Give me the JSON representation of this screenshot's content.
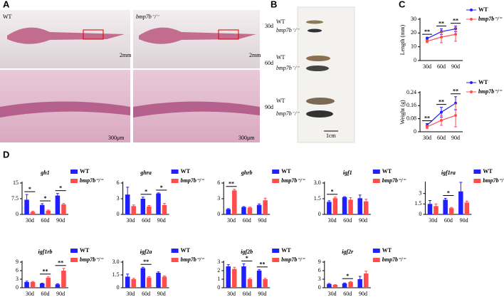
{
  "figure": {
    "panel_labels": [
      "A",
      "B",
      "C",
      "D"
    ]
  },
  "photos": {
    "A": {
      "genotypes": [
        "WT",
        "bmp7b⁻/⁻"
      ],
      "scale_bars": [
        "2mm",
        "2mm",
        "300μm",
        "300μm"
      ]
    },
    "B": {
      "ages": [
        "30d",
        "60d",
        "90d"
      ],
      "genotypes": [
        "WT",
        "bmp7b⁻/⁻"
      ],
      "scale_bar": "1cm"
    }
  },
  "chart_data": [
    {
      "type": "line",
      "ylabel": "Length (mm)",
      "categories": [
        "30d",
        "60d",
        "90d"
      ],
      "ylim": [
        0,
        30
      ],
      "yticks": [
        0,
        10,
        20,
        30
      ],
      "significance": [
        "**",
        "**",
        "**"
      ],
      "series": [
        {
          "name": "WT",
          "color": "#1f1fff",
          "values": [
            16,
            21,
            23
          ],
          "errors": [
            1,
            2,
            2
          ]
        },
        {
          "name": "bmp7b⁻/⁻",
          "color": "#ff4d4d",
          "values": [
            14,
            17,
            19
          ],
          "errors": [
            1,
            4,
            5
          ]
        }
      ]
    },
    {
      "type": "line",
      "ylabel": "Weight (g)",
      "categories": [
        "30d",
        "60d",
        "90d"
      ],
      "ylim": [
        0,
        0.24
      ],
      "yticks": [
        0,
        0.08,
        0.16,
        0.24
      ],
      "significance": [
        "**",
        "**",
        "**"
      ],
      "series": [
        {
          "name": "WT",
          "color": "#1f1fff",
          "values": [
            0.04,
            0.12,
            0.175
          ],
          "errors": [
            0.01,
            0.03,
            0.04
          ]
        },
        {
          "name": "bmp7b⁻/⁻",
          "color": "#ff4d4d",
          "values": [
            0.03,
            0.07,
            0.1
          ],
          "errors": [
            0.01,
            0.03,
            0.07
          ]
        }
      ]
    },
    {
      "type": "bar",
      "title": "gh1",
      "categories": [
        "30d",
        "60d",
        "90d"
      ],
      "ylim": [
        0,
        15
      ],
      "yticks": [
        0,
        7.5,
        15
      ],
      "significance": [
        "*",
        "*",
        "*"
      ],
      "series": [
        {
          "name": "WT",
          "color": "#1f1fff",
          "values": [
            7,
            4.5,
            9
          ],
          "errors": [
            2.5,
            0.6,
            1
          ]
        },
        {
          "name": "bmp7b⁻/⁻",
          "color": "#ff4d4d",
          "values": [
            1.2,
            1.8,
            4.8
          ],
          "errors": [
            0.3,
            0.3,
            0.4
          ]
        }
      ]
    },
    {
      "type": "bar",
      "title": "ghra",
      "categories": [
        "30d",
        "60d",
        "90d"
      ],
      "ylim": [
        0,
        6
      ],
      "yticks": [
        0,
        3,
        6
      ],
      "significance": [
        null,
        "*",
        "*"
      ],
      "series": [
        {
          "name": "WT",
          "color": "#1f1fff",
          "values": [
            3.8,
            3,
            4
          ],
          "errors": [
            1.4,
            0.3,
            0.1
          ]
        },
        {
          "name": "bmp7b⁻/⁻",
          "color": "#ff4d4d",
          "values": [
            1.6,
            1.5,
            1.8
          ],
          "errors": [
            0.2,
            0.2,
            0.3
          ]
        }
      ]
    },
    {
      "type": "bar",
      "title": "ghrb",
      "categories": [
        "30d",
        "60d",
        "90d"
      ],
      "ylim": [
        0,
        6
      ],
      "yticks": [
        0,
        3,
        6
      ],
      "significance": [
        "**",
        null,
        null
      ],
      "series": [
        {
          "name": "WT",
          "color": "#1f1fff",
          "values": [
            1,
            1.4,
            1.8
          ],
          "errors": [
            0.1,
            0.1,
            0.2
          ]
        },
        {
          "name": "bmp7b⁻/⁻",
          "color": "#ff4d4d",
          "values": [
            4.6,
            1.3,
            2.7
          ],
          "errors": [
            0.2,
            0.1,
            0.4
          ]
        }
      ]
    },
    {
      "type": "bar",
      "title": "igf1",
      "categories": [
        "30d",
        "60d",
        "90d"
      ],
      "ylim": [
        0,
        3
      ],
      "yticks": [
        0,
        1.5,
        {
          "value": 3,
          "label": "3.0"
        }
      ],
      "significance": [
        "*",
        null,
        null
      ],
      "series": [
        {
          "name": "WT",
          "color": "#1f1fff",
          "values": [
            1.2,
            1.65,
            1.55
          ],
          "errors": [
            0.1,
            0.05,
            0.3
          ]
        },
        {
          "name": "bmp7b⁻/⁻",
          "color": "#ff4d4d",
          "values": [
            1.55,
            1.4,
            1.25
          ],
          "errors": [
            0.1,
            0.2,
            0.2
          ]
        }
      ]
    },
    {
      "type": "bar",
      "title": "igf1ra",
      "categories": [
        "30d",
        "60d",
        "90d"
      ],
      "ylim": [
        0,
        4.5
      ],
      "yticks": [
        0,
        1.5,
        3
      ],
      "significance": [
        null,
        "*",
        null
      ],
      "series": [
        {
          "name": "WT",
          "color": "#1f1fff",
          "values": [
            1.5,
            2.1,
            3.3
          ],
          "errors": [
            0.5,
            0.2,
            1.3
          ]
        },
        {
          "name": "bmp7b⁻/⁻",
          "color": "#ff4d4d",
          "values": [
            1.2,
            0.9,
            1.7
          ],
          "errors": [
            0.3,
            0.1,
            0.2
          ]
        }
      ]
    },
    {
      "type": "bar",
      "title": "igf1rb",
      "categories": [
        "30d",
        "60d",
        "90d"
      ],
      "ylim": [
        0,
        9
      ],
      "yticks": [
        0,
        3,
        6,
        9
      ],
      "significance": [
        null,
        "**",
        "**"
      ],
      "series": [
        {
          "name": "WT",
          "color": "#1f1fff",
          "values": [
            2,
            1.5,
            1.2
          ],
          "errors": [
            0.3,
            0.1,
            0.2
          ]
        },
        {
          "name": "bmp7b⁻/⁻",
          "color": "#ff4d4d",
          "values": [
            2,
            3.5,
            6
          ],
          "errors": [
            0.2,
            0.3,
            0.8
          ]
        }
      ]
    },
    {
      "type": "bar",
      "title": "igf2a",
      "categories": [
        "30d",
        "60d",
        "90d"
      ],
      "ylim": [
        0,
        3
      ],
      "yticks": [
        0,
        1.5,
        {
          "value": 3,
          "label": "3.0"
        }
      ],
      "significance": [
        null,
        "**",
        null
      ],
      "series": [
        {
          "name": "WT",
          "color": "#1f1fff",
          "values": [
            1.3,
            2.3,
            1.75
          ],
          "errors": [
            0.3,
            0.1,
            0.1
          ]
        },
        {
          "name": "bmp7b⁻/⁻",
          "color": "#ff4d4d",
          "values": [
            1,
            1.2,
            1.3
          ],
          "errors": [
            0.1,
            0.1,
            0.1
          ]
        }
      ]
    },
    {
      "type": "bar",
      "title": "igf2b",
      "categories": [
        "30d",
        "60d",
        "90d"
      ],
      "ylim": [
        0,
        3
      ],
      "yticks": [
        0,
        1,
        2,
        3
      ],
      "significance": [
        null,
        "*",
        "**"
      ],
      "series": [
        {
          "name": "WT",
          "color": "#1f1fff",
          "values": [
            2.5,
            2.5,
            2
          ],
          "errors": [
            0.2,
            0.3,
            0.1
          ]
        },
        {
          "name": "bmp7b⁻/⁻",
          "color": "#ff4d4d",
          "values": [
            2.2,
            1,
            1
          ],
          "errors": [
            0.2,
            0.1,
            0.1
          ]
        }
      ]
    },
    {
      "type": "bar",
      "title": "igf2r",
      "categories": [
        "30d",
        "60d",
        "90d"
      ],
      "ylim": [
        0,
        9
      ],
      "yticks": [
        0,
        3,
        6,
        9
      ],
      "significance": [
        null,
        "*",
        null
      ],
      "series": [
        {
          "name": "WT",
          "color": "#1f1fff",
          "values": [
            1.3,
            1.5,
            3
          ],
          "errors": [
            0.2,
            0.2,
            1
          ]
        },
        {
          "name": "bmp7b⁻/⁻",
          "color": "#ff4d4d",
          "values": [
            1,
            2,
            5
          ],
          "errors": [
            0.1,
            0.2,
            0.8
          ]
        }
      ]
    }
  ]
}
